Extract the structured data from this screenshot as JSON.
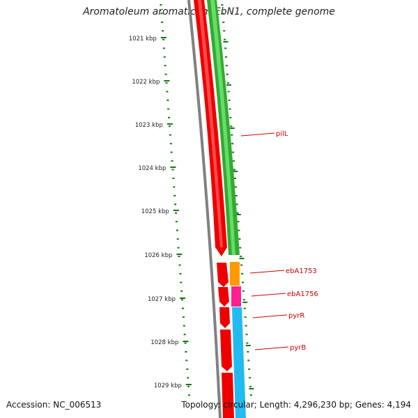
{
  "title": "Aromatoleum aromaticum EbN1, complete genome",
  "accession": "Accession: NC_006513",
  "summary": "Topology: circular; Length: 4,296,230 bp; Genes: 4,194",
  "colors": {
    "backbone": "#808080",
    "reverse_cds": "#ee0000",
    "forward_cds": "#33aa33",
    "orange_feature": "#ff9900",
    "pink_feature": "#ff1f8f",
    "cyan_feature": "#22bbf0",
    "ticks": "#117711",
    "gene_labels": "#cc0000"
  },
  "scale_labels": [
    "1021 kbp",
    "1022 kbp",
    "1023 kbp",
    "1024 kbp",
    "1025 kbp",
    "1026 kbp",
    "1027 kbp",
    "1028 kbp",
    "1029 kbp"
  ],
  "gene_labels": [
    "pilL",
    "ebA1753",
    "ebA1756",
    "pyrR",
    "pyrB"
  ]
}
